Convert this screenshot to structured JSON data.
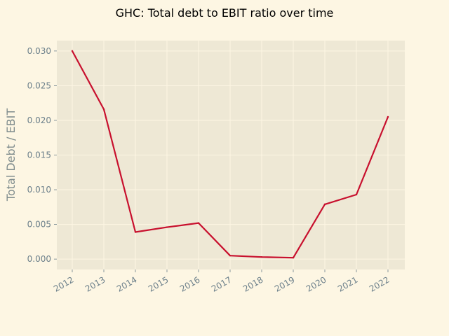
{
  "chart_data": {
    "type": "line",
    "title": "GHC: Total debt to EBIT ratio over time",
    "xlabel": "",
    "ylabel": "Total Debt / EBIT",
    "x": [
      "2012",
      "2013",
      "2014",
      "2015",
      "2016",
      "2017",
      "2018",
      "2019",
      "2020",
      "2021",
      "2022"
    ],
    "series": [
      {
        "values": [
          0.03,
          0.0216,
          0.0039,
          0.0046,
          0.0052,
          0.0005,
          0.0003,
          0.0002,
          0.0079,
          0.0093,
          0.0205
        ]
      }
    ],
    "yticks": [
      "0.000",
      "0.005",
      "0.010",
      "0.015",
      "0.020",
      "0.025",
      "0.030"
    ],
    "ylim": [
      -0.0015,
      0.0315
    ],
    "grid": true,
    "colors": {
      "background": "#fdf6e3",
      "plot_background": "#eee8d5",
      "grid": "#fdf6e3",
      "line": "#c8102e",
      "tick_text": "#6b7f8a",
      "ylabel_text": "#7f8c8d",
      "title_text": "#000000"
    }
  }
}
